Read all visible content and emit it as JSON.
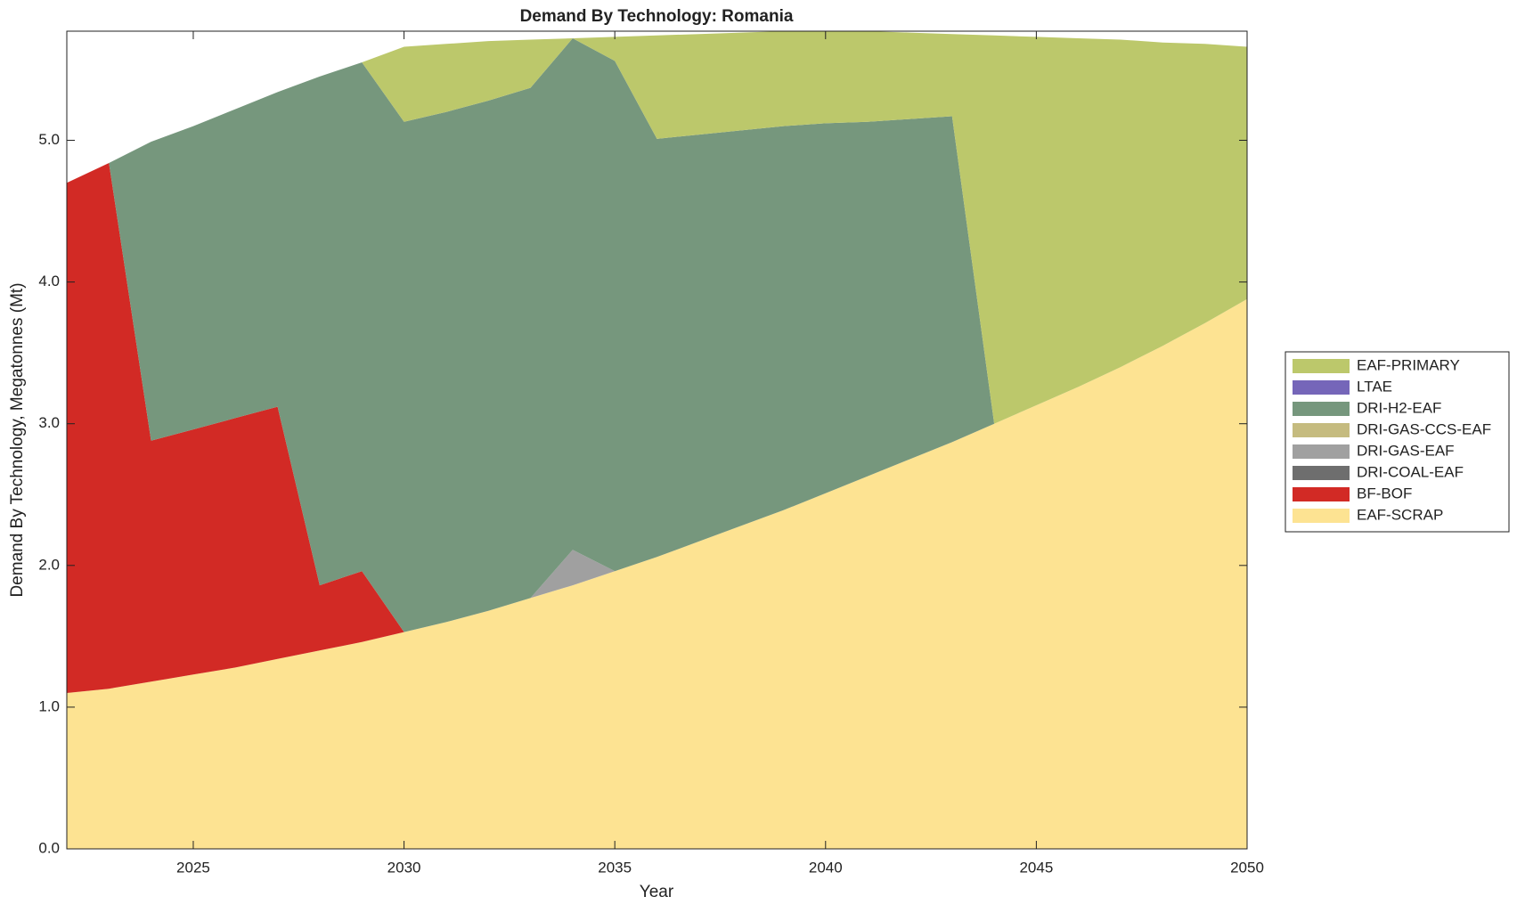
{
  "chart_data": {
    "type": "area",
    "title": "Demand By Technology: Romania",
    "x_label": "Year",
    "y_label": "Demand By Technology, Megatonnes (Mt)",
    "x": [
      2022,
      2023,
      2024,
      2025,
      2026,
      2027,
      2028,
      2029,
      2030,
      2031,
      2032,
      2033,
      2034,
      2035,
      2036,
      2037,
      2038,
      2039,
      2040,
      2041,
      2042,
      2043,
      2044,
      2045,
      2046,
      2047,
      2048,
      2049,
      2050
    ],
    "series": [
      {
        "name": "EAF-SCRAP",
        "color": "#fde392",
        "values": [
          1.1,
          1.13,
          1.18,
          1.23,
          1.28,
          1.34,
          1.4,
          1.46,
          1.53,
          1.6,
          1.68,
          1.77,
          1.86,
          1.96,
          2.06,
          2.17,
          2.28,
          2.39,
          2.51,
          2.63,
          2.75,
          2.87,
          3.0,
          3.13,
          3.26,
          3.4,
          3.55,
          3.71,
          3.88
        ]
      },
      {
        "name": "BF-BOF",
        "color": "#d22a25",
        "values": [
          3.6,
          3.71,
          1.7,
          1.73,
          1.76,
          1.78,
          0.46,
          0.5,
          0,
          0,
          0,
          0,
          0,
          0,
          0,
          0,
          0,
          0,
          0,
          0,
          0,
          0,
          0,
          0,
          0,
          0,
          0,
          0,
          0
        ]
      },
      {
        "name": "DRI-COAL-EAF",
        "color": "#6e6e6e",
        "values": [
          0,
          0,
          0,
          0,
          0,
          0,
          0,
          0,
          0,
          0,
          0,
          0,
          0,
          0,
          0,
          0,
          0,
          0,
          0,
          0,
          0,
          0,
          0,
          0,
          0,
          0,
          0,
          0,
          0
        ]
      },
      {
        "name": "DRI-GAS-EAF",
        "color": "#a0a0a0",
        "values": [
          0,
          0,
          0,
          0,
          0,
          0,
          0,
          0,
          0,
          0,
          0,
          0,
          0.25,
          0,
          0,
          0,
          0,
          0,
          0,
          0,
          0,
          0,
          0,
          0,
          0,
          0,
          0,
          0,
          0
        ]
      },
      {
        "name": "DRI-GAS-CCS-EAF",
        "color": "#c5bb7f",
        "values": [
          0,
          0,
          0,
          0,
          0,
          0,
          0,
          0,
          0,
          0,
          0,
          0,
          0,
          0,
          0,
          0,
          0,
          0,
          0,
          0,
          0,
          0,
          0,
          0,
          0,
          0,
          0,
          0,
          0
        ]
      },
      {
        "name": "DRI-H2-EAF",
        "color": "#76977d",
        "values": [
          0,
          0,
          2.11,
          2.14,
          2.18,
          2.22,
          3.59,
          3.59,
          3.6,
          3.6,
          3.6,
          3.6,
          3.61,
          3.6,
          2.95,
          2.87,
          2.79,
          2.71,
          2.61,
          2.5,
          2.4,
          2.3,
          0,
          0,
          0,
          0,
          0,
          0,
          0
        ]
      },
      {
        "name": "LTAE",
        "color": "#7566b9",
        "values": [
          0,
          0,
          0,
          0,
          0,
          0,
          0,
          0,
          0,
          0,
          0,
          0,
          0,
          0,
          0,
          0,
          0,
          0,
          0,
          0,
          0,
          0,
          0,
          0,
          0,
          0,
          0,
          0,
          0
        ]
      },
      {
        "name": "EAF-PRIMARY",
        "color": "#bcc86b",
        "values": [
          0,
          0,
          0,
          0,
          0,
          0,
          0,
          0,
          0.53,
          0.48,
          0.42,
          0.34,
          0,
          0.17,
          0.73,
          0.71,
          0.69,
          0.67,
          0.65,
          0.64,
          0.61,
          0.58,
          2.74,
          2.6,
          2.46,
          2.31,
          2.14,
          1.97,
          1.78
        ]
      }
    ],
    "xlim": [
      2022,
      2050
    ],
    "xticks": [
      2025,
      2030,
      2035,
      2040,
      2045,
      2050
    ],
    "ylim": [
      0,
      5.77
    ],
    "yticks": [
      {
        "value": 0,
        "label": "0.0"
      },
      {
        "value": 1,
        "label": "1.0"
      },
      {
        "value": 2,
        "label": "2.0"
      },
      {
        "value": 3,
        "label": "3.0"
      },
      {
        "value": 4,
        "label": "4.0"
      },
      {
        "value": 5,
        "label": "5.0"
      }
    ],
    "legend": "right"
  }
}
